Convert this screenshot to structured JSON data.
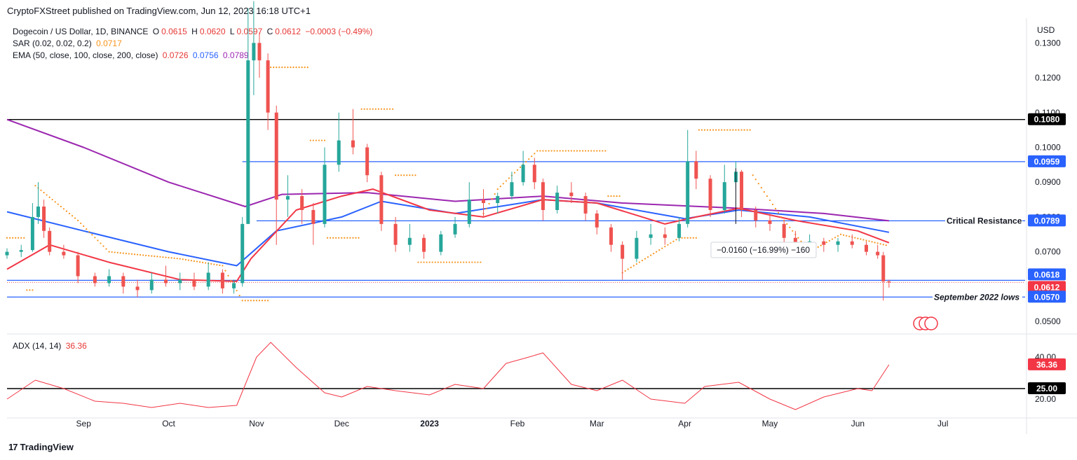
{
  "header": {
    "publisher_line": "CryptoFXStreet published on TradingView.com, Jun 12, 2023 16:18 UTC+1"
  },
  "legend": {
    "symbol": "Dogecoin / US Dollar, 1D, BINANCE",
    "o_label": "O",
    "o": "0.0615",
    "h_label": "H",
    "h": "0.0620",
    "l_label": "L",
    "l": "0.0597",
    "c_label": "C",
    "c": "0.0612",
    "change": "−0.0003 (−0.49%)",
    "sar_label": "SAR (0.02, 0.02, 0.2)",
    "sar_value": "0.0717",
    "ema_label": "EMA (50, close, 100, close, 200, close)",
    "ema50": "0.0726",
    "ema100": "0.0756",
    "ema200": "0.0789",
    "adx_label": "ADX (14, 14)",
    "adx_value": "36.36"
  },
  "currency": "USD",
  "footer": {
    "brand": "TradingView",
    "logo_glyph": "17"
  },
  "colors": {
    "candle_up": "#26a69a",
    "candle_down": "#ef5350",
    "ema50": "#f23645",
    "ema100": "#2962ff",
    "ema200": "#9c27b0",
    "sar": "#f7931a",
    "adx": "#f23645",
    "level_blue": "#2962ff",
    "level_black": "#000000"
  },
  "chart_data": [
    {
      "type": "line",
      "subtype": "candlestick",
      "y_axis": {
        "ticks": [
          "0.1300",
          "0.1200",
          "0.1100",
          "0.1000",
          "0.0900",
          "0.0800",
          "0.0700",
          "0.0600",
          "0.0500"
        ],
        "tick_values": [
          0.13,
          0.12,
          0.11,
          0.1,
          0.09,
          0.08,
          0.07,
          0.06,
          0.05
        ],
        "ylim": [
          0.0472,
          0.1363
        ],
        "position": "right"
      },
      "x_axis": {
        "labels": [
          "Sep",
          "Oct",
          "Nov",
          "Dec",
          "2023",
          "Feb",
          "Mar",
          "Apr",
          "May",
          "Jun",
          "Jul"
        ],
        "label_dates": [
          "2022-09-01",
          "2022-10-01",
          "2022-11-01",
          "2022-12-01",
          "2023-01-01",
          "2023-02-01",
          "2023-03-01",
          "2023-04-01",
          "2023-05-01",
          "2023-06-01",
          "2023-07-01"
        ],
        "bold": [
          "2023"
        ],
        "range": [
          "2022-08-05",
          "2023-07-30"
        ]
      },
      "ohlc": [
        [
          "2022-08-05",
          0.069,
          0.071,
          0.068,
          0.07
        ],
        [
          "2022-08-10",
          0.07,
          0.072,
          0.0685,
          0.0705
        ],
        [
          "2022-08-14",
          0.0705,
          0.084,
          0.07,
          0.08
        ],
        [
          "2022-08-16",
          0.08,
          0.09,
          0.078,
          0.083
        ],
        [
          "2022-08-18",
          0.083,
          0.085,
          0.074,
          0.076
        ],
        [
          "2022-08-20",
          0.076,
          0.077,
          0.069,
          0.07
        ],
        [
          "2022-08-25",
          0.07,
          0.072,
          0.068,
          0.069
        ],
        [
          "2022-08-30",
          0.069,
          0.07,
          0.061,
          0.063
        ],
        [
          "2022-09-05",
          0.063,
          0.064,
          0.06,
          0.061
        ],
        [
          "2022-09-10",
          0.061,
          0.065,
          0.06,
          0.063
        ],
        [
          "2022-09-15",
          0.063,
          0.064,
          0.058,
          0.06
        ],
        [
          "2022-09-20",
          0.06,
          0.062,
          0.057,
          0.059
        ],
        [
          "2022-09-25",
          0.059,
          0.064,
          0.058,
          0.062
        ],
        [
          "2022-09-30",
          0.062,
          0.066,
          0.06,
          0.061
        ],
        [
          "2022-10-05",
          0.061,
          0.064,
          0.059,
          0.062
        ],
        [
          "2022-10-10",
          0.062,
          0.064,
          0.059,
          0.06
        ],
        [
          "2022-10-15",
          0.06,
          0.067,
          0.059,
          0.064
        ],
        [
          "2022-10-20",
          0.064,
          0.065,
          0.058,
          0.0595
        ],
        [
          "2022-10-24",
          0.0595,
          0.062,
          0.058,
          0.061
        ],
        [
          "2022-10-27",
          0.061,
          0.08,
          0.06,
          0.078
        ],
        [
          "2022-10-29",
          0.078,
          0.14,
          0.078,
          0.125
        ],
        [
          "2022-10-31",
          0.125,
          0.142,
          0.115,
          0.13
        ],
        [
          "2022-11-02",
          0.13,
          0.133,
          0.12,
          0.125
        ],
        [
          "2022-11-05",
          0.125,
          0.127,
          0.105,
          0.11
        ],
        [
          "2022-11-08",
          0.11,
          0.112,
          0.072,
          0.085
        ],
        [
          "2022-11-12",
          0.085,
          0.092,
          0.08,
          0.086
        ],
        [
          "2022-11-17",
          0.086,
          0.088,
          0.078,
          0.082
        ],
        [
          "2022-11-21",
          0.082,
          0.084,
          0.072,
          0.078
        ],
        [
          "2022-11-25",
          0.078,
          0.1,
          0.077,
          0.095
        ],
        [
          "2022-11-30",
          0.095,
          0.11,
          0.093,
          0.102
        ],
        [
          "2022-12-05",
          0.102,
          0.111,
          0.098,
          0.1
        ],
        [
          "2022-12-10",
          0.1,
          0.101,
          0.09,
          0.092
        ],
        [
          "2022-12-15",
          0.092,
          0.093,
          0.076,
          0.078
        ],
        [
          "2022-12-20",
          0.078,
          0.08,
          0.07,
          0.072
        ],
        [
          "2022-12-25",
          0.072,
          0.078,
          0.07,
          0.074
        ],
        [
          "2022-12-30",
          0.074,
          0.075,
          0.068,
          0.07
        ],
        [
          "2023-01-05",
          0.07,
          0.076,
          0.069,
          0.075
        ],
        [
          "2023-01-10",
          0.075,
          0.08,
          0.074,
          0.078
        ],
        [
          "2023-01-15",
          0.078,
          0.09,
          0.077,
          0.085
        ],
        [
          "2023-01-20",
          0.085,
          0.088,
          0.08,
          0.084
        ],
        [
          "2023-01-25",
          0.084,
          0.087,
          0.081,
          0.086
        ],
        [
          "2023-01-30",
          0.086,
          0.093,
          0.085,
          0.09
        ],
        [
          "2023-02-03",
          0.09,
          0.099,
          0.089,
          0.095
        ],
        [
          "2023-02-07",
          0.095,
          0.097,
          0.088,
          0.09
        ],
        [
          "2023-02-10",
          0.09,
          0.091,
          0.079,
          0.082
        ],
        [
          "2023-02-15",
          0.082,
          0.089,
          0.081,
          0.087
        ],
        [
          "2023-02-20",
          0.087,
          0.09,
          0.084,
          0.086
        ],
        [
          "2023-02-25",
          0.086,
          0.087,
          0.079,
          0.081
        ],
        [
          "2023-03-01",
          0.081,
          0.082,
          0.075,
          0.077
        ],
        [
          "2023-03-06",
          0.077,
          0.078,
          0.07,
          0.072
        ],
        [
          "2023-03-10",
          0.072,
          0.073,
          0.062,
          0.068
        ],
        [
          "2023-03-15",
          0.068,
          0.076,
          0.067,
          0.074
        ],
        [
          "2023-03-20",
          0.074,
          0.078,
          0.072,
          0.075
        ],
        [
          "2023-03-25",
          0.075,
          0.077,
          0.072,
          0.074
        ],
        [
          "2023-03-30",
          0.074,
          0.08,
          0.073,
          0.078
        ],
        [
          "2023-04-02",
          0.078,
          0.105,
          0.077,
          0.096
        ],
        [
          "2023-04-05",
          0.096,
          0.099,
          0.088,
          0.091
        ],
        [
          "2023-04-10",
          0.091,
          0.092,
          0.08,
          0.082
        ],
        [
          "2023-04-15",
          0.082,
          0.095,
          0.081,
          0.09
        ],
        [
          "2023-04-19",
          0.09,
          0.096,
          0.088,
          0.093
        ],
        [
          "2023-04-21",
          0.093,
          0.0935,
          0.08,
          0.082
        ],
        [
          "2023-04-26",
          0.082,
          0.083,
          0.077,
          0.079
        ],
        [
          "2023-05-01",
          0.079,
          0.081,
          0.076,
          0.078
        ],
        [
          "2023-05-06",
          0.078,
          0.079,
          0.072,
          0.074
        ],
        [
          "2023-05-10",
          0.074,
          0.076,
          0.07,
          0.072
        ],
        [
          "2023-05-15",
          0.072,
          0.075,
          0.07,
          0.073
        ],
        [
          "2023-05-20",
          0.073,
          0.074,
          0.07,
          0.072
        ],
        [
          "2023-05-25",
          0.072,
          0.074,
          0.07,
          0.073
        ],
        [
          "2023-05-30",
          0.073,
          0.075,
          0.071,
          0.072
        ],
        [
          "2023-06-04",
          0.072,
          0.073,
          0.069,
          0.07
        ],
        [
          "2023-06-08",
          0.07,
          0.072,
          0.068,
          0.069
        ],
        [
          "2023-06-10",
          0.069,
          0.07,
          0.056,
          0.0615
        ],
        [
          "2023-06-12",
          0.0615,
          0.062,
          0.0597,
          0.0612
        ]
      ],
      "ema50": [
        [
          "2022-08-05",
          0.065
        ],
        [
          "2022-08-20",
          0.072
        ],
        [
          "2022-09-10",
          0.067
        ],
        [
          "2022-10-05",
          0.062
        ],
        [
          "2022-10-25",
          0.0615
        ],
        [
          "2022-10-30",
          0.068
        ],
        [
          "2022-11-15",
          0.082
        ],
        [
          "2022-12-01",
          0.086
        ],
        [
          "2022-12-12",
          0.088
        ],
        [
          "2023-01-01",
          0.082
        ],
        [
          "2023-01-20",
          0.08
        ],
        [
          "2023-02-10",
          0.085
        ],
        [
          "2023-03-01",
          0.084
        ],
        [
          "2023-03-25",
          0.078
        ],
        [
          "2023-04-05",
          0.08
        ],
        [
          "2023-04-20",
          0.0825
        ],
        [
          "2023-05-10",
          0.079
        ],
        [
          "2023-06-01",
          0.076
        ],
        [
          "2023-06-12",
          0.0726
        ]
      ],
      "ema100": [
        [
          "2022-08-05",
          0.0815
        ],
        [
          "2022-09-01",
          0.076
        ],
        [
          "2022-10-01",
          0.07
        ],
        [
          "2022-10-25",
          0.066
        ],
        [
          "2022-11-08",
          0.076
        ],
        [
          "2022-12-01",
          0.08
        ],
        [
          "2022-12-15",
          0.0845
        ],
        [
          "2023-01-10",
          0.081
        ],
        [
          "2023-02-10",
          0.085
        ],
        [
          "2023-03-01",
          0.084
        ],
        [
          "2023-04-01",
          0.0795
        ],
        [
          "2023-04-20",
          0.082
        ],
        [
          "2023-05-15",
          0.08
        ],
        [
          "2023-06-12",
          0.0756
        ]
      ],
      "ema200": [
        [
          "2022-08-05",
          0.108
        ],
        [
          "2022-09-01",
          0.1
        ],
        [
          "2022-10-01",
          0.09
        ],
        [
          "2022-10-28",
          0.083
        ],
        [
          "2022-11-10",
          0.0865
        ],
        [
          "2022-12-10",
          0.087
        ],
        [
          "2023-01-10",
          0.0845
        ],
        [
          "2023-02-10",
          0.086
        ],
        [
          "2023-03-10",
          0.084
        ],
        [
          "2023-04-20",
          0.0825
        ],
        [
          "2023-05-20",
          0.081
        ],
        [
          "2023-06-12",
          0.0789
        ]
      ],
      "sar": [
        [
          "2022-08-05",
          0.074
        ],
        [
          "2022-08-12",
          0.059
        ],
        [
          "2022-08-15",
          0.089
        ],
        [
          "2022-08-30",
          0.079
        ],
        [
          "2022-09-10",
          0.07
        ],
        [
          "2022-10-05",
          0.068
        ],
        [
          "2022-10-20",
          0.066
        ],
        [
          "2022-10-27",
          0.056
        ],
        [
          "2022-11-06",
          0.123
        ],
        [
          "2022-11-20",
          0.102
        ],
        [
          "2022-11-26",
          0.074
        ],
        [
          "2022-12-08",
          0.111
        ],
        [
          "2022-12-20",
          0.092
        ],
        [
          "2022-12-28",
          0.067
        ],
        [
          "2023-01-20",
          0.081
        ],
        [
          "2023-01-25",
          0.088
        ],
        [
          "2023-02-08",
          0.099
        ],
        [
          "2023-03-05",
          0.086
        ],
        [
          "2023-03-10",
          0.064
        ],
        [
          "2023-03-30",
          0.074
        ],
        [
          "2023-04-06",
          0.105
        ],
        [
          "2023-04-25",
          0.092
        ],
        [
          "2023-05-05",
          0.08
        ],
        [
          "2023-05-15",
          0.07
        ],
        [
          "2023-05-26",
          0.075
        ],
        [
          "2023-06-12",
          0.0717
        ]
      ],
      "levels": [
        {
          "value": 0.108,
          "label": "0.1080",
          "color": "black",
          "style": "solid"
        },
        {
          "value": 0.0959,
          "label": "0.0959",
          "color": "blue",
          "style": "solid"
        },
        {
          "value": 0.0789,
          "label": "0.0789",
          "color": "blue",
          "style": "solid",
          "annotation": "Critical Resistance"
        },
        {
          "value": 0.0618,
          "label": "0.0618",
          "color": "blue",
          "style": "solid"
        },
        {
          "value": 0.0612,
          "label": "0.0612",
          "color": "red",
          "style": "dotted"
        },
        {
          "value": 0.057,
          "label": "0.0570",
          "color": "blue",
          "style": "solid",
          "annotation": "September 2022 lows"
        }
      ],
      "measure": {
        "from_date": "2023-04-19",
        "from": 0.094,
        "to": 0.078,
        "text": "−0.0160 (−16.99%) −160"
      }
    },
    {
      "type": "line",
      "title": "ADX (14, 14)",
      "y_axis": {
        "ticks": [
          "40.00",
          "20.00"
        ],
        "tick_values": [
          40,
          20
        ],
        "ylim": [
          12,
          50
        ]
      },
      "reference_line": {
        "value": 25,
        "label": "25.00"
      },
      "current": {
        "value": 36.36,
        "label": "36.36"
      },
      "series": [
        {
          "name": "ADX",
          "values": [
            [
              "2022-08-05",
              20
            ],
            [
              "2022-08-15",
              29
            ],
            [
              "2022-08-25",
              25
            ],
            [
              "2022-09-05",
              19
            ],
            [
              "2022-09-15",
              18
            ],
            [
              "2022-09-25",
              16
            ],
            [
              "2022-10-05",
              18
            ],
            [
              "2022-10-15",
              16
            ],
            [
              "2022-10-25",
              17
            ],
            [
              "2022-11-01",
              40
            ],
            [
              "2022-11-06",
              47
            ],
            [
              "2022-11-15",
              35
            ],
            [
              "2022-11-25",
              23
            ],
            [
              "2022-12-01",
              21
            ],
            [
              "2022-12-10",
              26
            ],
            [
              "2022-12-20",
              24
            ],
            [
              "2023-01-01",
              22
            ],
            [
              "2023-01-10",
              27
            ],
            [
              "2023-01-20",
              25
            ],
            [
              "2023-01-28",
              37
            ],
            [
              "2023-02-05",
              40
            ],
            [
              "2023-02-10",
              42
            ],
            [
              "2023-02-20",
              27
            ],
            [
              "2023-03-01",
              24
            ],
            [
              "2023-03-10",
              29
            ],
            [
              "2023-03-20",
              20
            ],
            [
              "2023-04-01",
              18
            ],
            [
              "2023-04-08",
              26
            ],
            [
              "2023-04-20",
              28
            ],
            [
              "2023-05-01",
              20
            ],
            [
              "2023-05-10",
              15
            ],
            [
              "2023-05-20",
              21
            ],
            [
              "2023-06-01",
              25
            ],
            [
              "2023-06-06",
              24
            ],
            [
              "2023-06-12",
              36.36
            ]
          ]
        }
      ]
    }
  ]
}
